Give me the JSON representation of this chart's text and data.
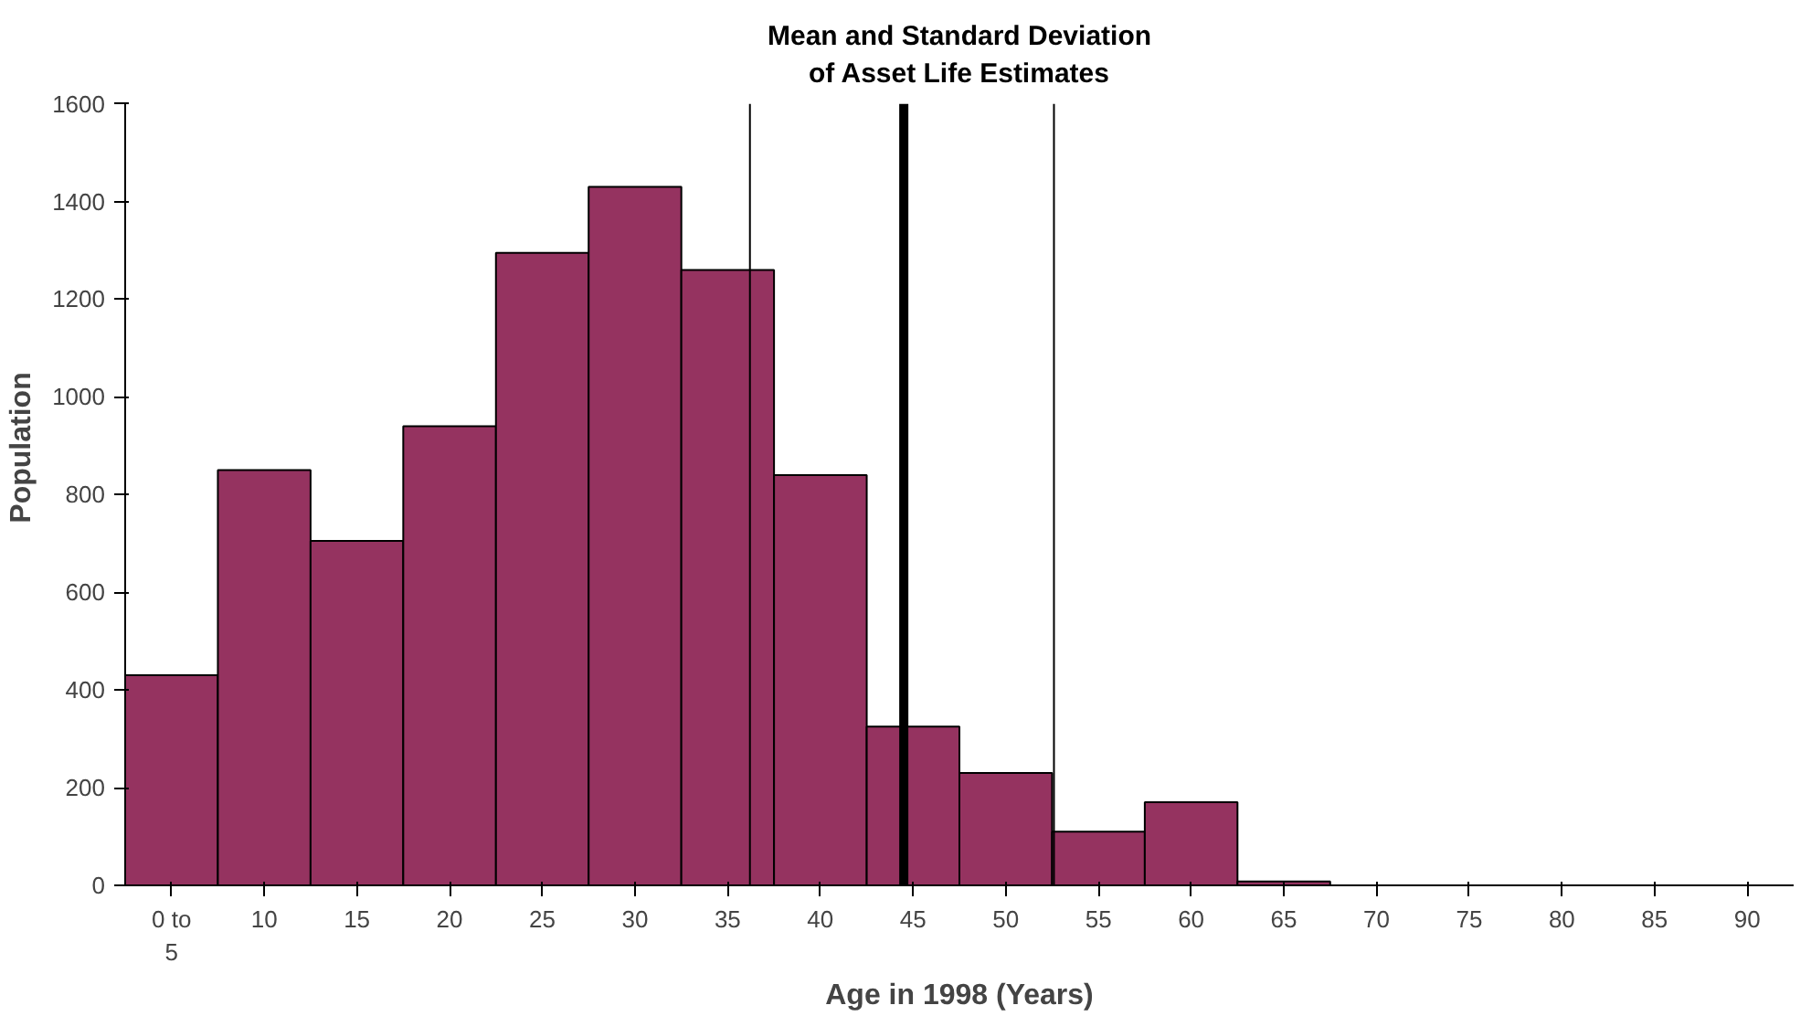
{
  "chart_data": {
    "type": "bar",
    "title": "Mean and Standard Deviation\nof Asset Life Estimates",
    "xlabel": "Age in 1998 (Years)",
    "ylabel": "Population",
    "x": [
      5,
      10,
      15,
      20,
      25,
      30,
      35,
      40,
      45,
      50,
      55,
      60,
      65,
      70,
      75,
      80,
      85,
      90
    ],
    "values": [
      430,
      850,
      705,
      940,
      1295,
      1430,
      1260,
      840,
      325,
      230,
      110,
      170,
      8,
      0,
      0,
      0,
      0,
      0
    ],
    "color": "#953360",
    "xlim": [
      2.5,
      92.5
    ],
    "xticks": [
      {
        "value": 5,
        "label": "0 to\n5"
      },
      10,
      15,
      20,
      25,
      30,
      35,
      40,
      45,
      50,
      55,
      60,
      65,
      70,
      75,
      80,
      85,
      90
    ],
    "ylim": [
      0,
      1600
    ],
    "yticks": [
      0,
      200,
      400,
      600,
      800,
      1000,
      1200,
      1400,
      1600
    ],
    "ref_lines": [
      {
        "axis": "x",
        "value": 36.2,
        "color": "#000000"
      },
      {
        "axis": "x",
        "value": 44.5,
        "color": "#000000"
      },
      {
        "axis": "x",
        "value": 52.6,
        "color": "#000000"
      }
    ],
    "grid": false
  }
}
